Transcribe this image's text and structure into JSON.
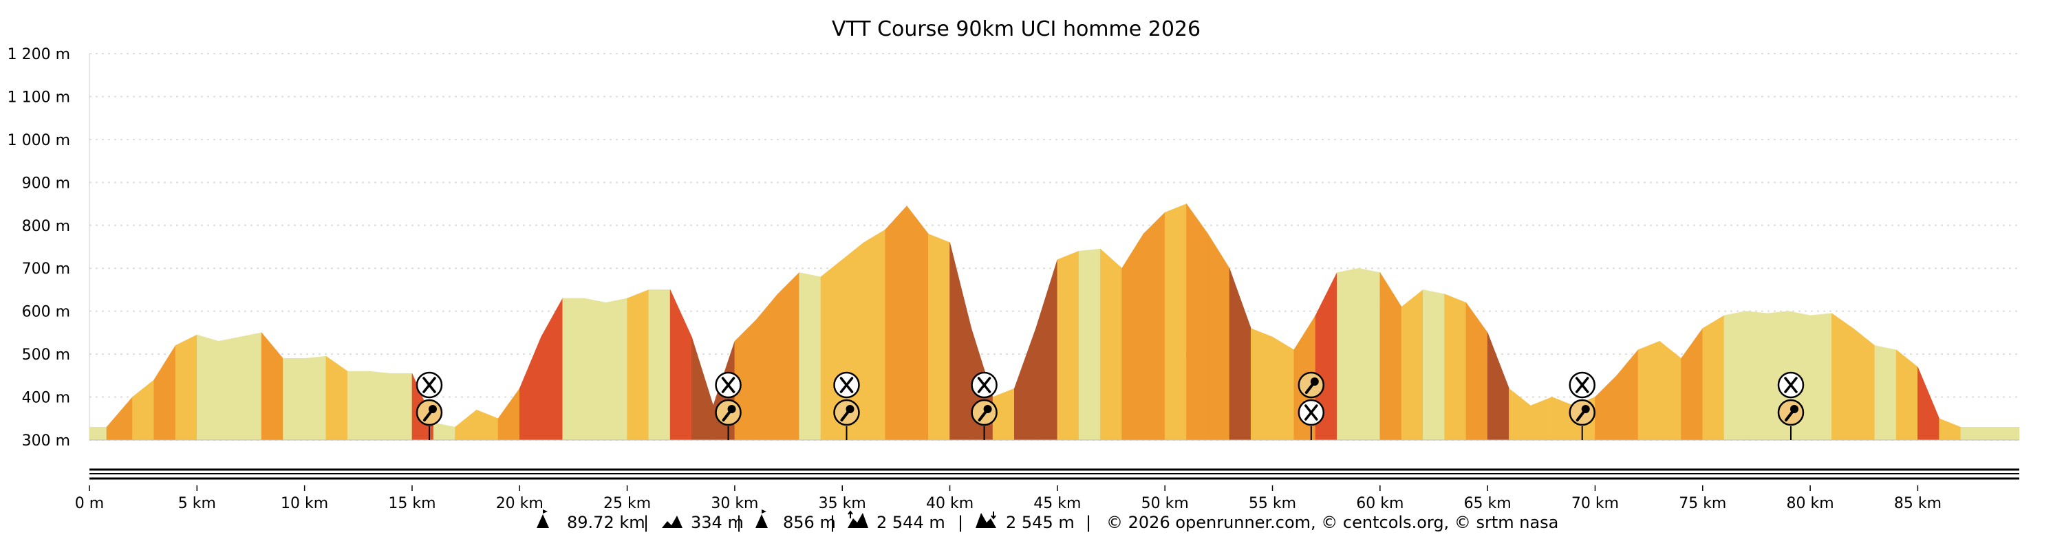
{
  "chart_data": {
    "type": "area",
    "title": "VTT Course 90km UCI homme 2026",
    "xlabel": "",
    "ylabel": "",
    "xlim": [
      0,
      89.72
    ],
    "ylim": [
      300,
      1200
    ],
    "grid": true,
    "y_ticks": [
      "300 m",
      "400 m",
      "500 m",
      "600 m",
      "700 m",
      "800 m",
      "900 m",
      "1 000 m",
      "1 100 m",
      "1 200 m"
    ],
    "y_tick_values": [
      300,
      400,
      500,
      600,
      700,
      800,
      900,
      1000,
      1100,
      1200
    ],
    "x_ticks": [
      "0 m",
      "5 km",
      "10 km",
      "15 km",
      "20 km",
      "25 km",
      "30 km",
      "35 km",
      "40 km",
      "45 km",
      "50 km",
      "55 km",
      "60 km",
      "65 km",
      "70 km",
      "75 km",
      "80 km",
      "85 km"
    ],
    "x_tick_values": [
      0,
      5,
      10,
      15,
      20,
      25,
      30,
      35,
      40,
      45,
      50,
      55,
      60,
      65,
      70,
      75,
      80,
      85
    ],
    "colors": {
      "flat": "#e6e39a",
      "gentle": "#f5c04a",
      "moderate": "#f0992e",
      "steep": "#e0502a",
      "very_steep": "#b2532a"
    },
    "series": [
      {
        "x": [
          0,
          0.8,
          2,
          3,
          4,
          5,
          6,
          7,
          8,
          9,
          10,
          11,
          12,
          13,
          14,
          15,
          16,
          17,
          18,
          19,
          20,
          21,
          22,
          23,
          24,
          25,
          26,
          27,
          28,
          29,
          30,
          31,
          32,
          33,
          34,
          35,
          36,
          37,
          38,
          39,
          40,
          41,
          42,
          43,
          44,
          45,
          46,
          47,
          48,
          49,
          50,
          51,
          52,
          53,
          54,
          55,
          56,
          57,
          58,
          59,
          60,
          61,
          62,
          63,
          64,
          65,
          66,
          67,
          68,
          69,
          70,
          71,
          72,
          73,
          74,
          75,
          76,
          77,
          78,
          79,
          80,
          81,
          82,
          83,
          84,
          85,
          86,
          87,
          88,
          89,
          89.72
        ],
        "y": [
          330,
          330,
          400,
          440,
          520,
          545,
          530,
          540,
          550,
          490,
          490,
          495,
          460,
          460,
          455,
          455,
          340,
          330,
          370,
          350,
          420,
          540,
          630,
          630,
          620,
          630,
          650,
          650,
          540,
          380,
          530,
          580,
          640,
          690,
          680,
          720,
          760,
          790,
          845,
          780,
          760,
          560,
          400,
          420,
          560,
          720,
          740,
          745,
          700,
          780,
          830,
          850,
          780,
          700,
          560,
          540,
          510,
          590,
          690,
          700,
          690,
          610,
          650,
          640,
          620,
          550,
          420,
          380,
          400,
          380,
          400,
          450,
          510,
          530,
          490,
          560,
          590,
          600,
          595,
          600,
          590,
          595,
          560,
          520,
          510,
          470,
          350,
          330,
          330,
          330,
          330
        ]
      }
    ],
    "markers": [
      {
        "km": 15.8,
        "icons": [
          "food-icon",
          "repair-icon"
        ]
      },
      {
        "km": 29.7,
        "icons": [
          "food-icon",
          "repair-icon"
        ]
      },
      {
        "km": 35.2,
        "icons": [
          "food-icon",
          "repair-icon"
        ]
      },
      {
        "km": 41.6,
        "icons": [
          "food-icon",
          "repair-icon"
        ]
      },
      {
        "km": 56.8,
        "icons": [
          "repair-icon",
          "food-icon"
        ]
      },
      {
        "km": 69.4,
        "icons": [
          "food-icon",
          "repair-icon"
        ]
      },
      {
        "km": 79.1,
        "icons": [
          "food-icon",
          "repair-icon"
        ]
      }
    ]
  },
  "footer": {
    "distance": "89.72 km",
    "min_altitude": "334 m",
    "max_altitude": "856 m",
    "ascent": "2 544 m",
    "descent": "2 545 m",
    "copyright": "© 2026 openrunner.com, © centcols.org, © srtm nasa"
  }
}
